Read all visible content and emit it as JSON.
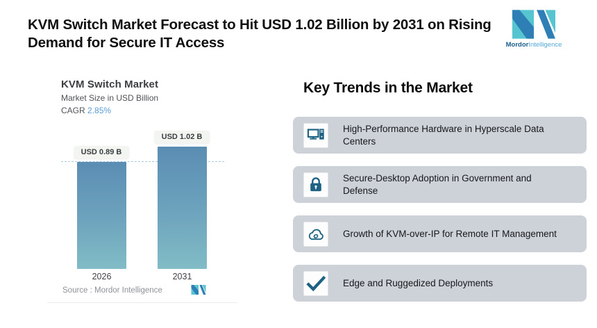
{
  "header": {
    "title": "KVM Switch Market Forecast to Hit USD 1.02 Billion by 2031 on Rising\nDemand for Secure IT Access",
    "logo": {
      "icon": "mordor-logo-mark",
      "brand_bold": "Mordor",
      "brand_light": "Intelligence",
      "teal": "#56c5d0",
      "blue": "#2e7fb5"
    }
  },
  "chart_data": {
    "type": "bar",
    "title": "KVM Switch Market",
    "subtitle": "Market Size in USD Billion",
    "cagr_label": "CAGR",
    "cagr_value": "2.85%",
    "cagr_color": "#5b9bd5",
    "categories": [
      "2026",
      "2031"
    ],
    "values": [
      0.89,
      1.02
    ],
    "bar_labels": [
      "USD 0.89 B",
      "USD 1.02 B"
    ],
    "unit": "USD Billion",
    "reference_line_value": 0.89,
    "source": "Source :  Mordor Intelligence",
    "bar_gradient_top": "#5b8db3",
    "bar_gradient_bottom": "#82bcc6",
    "grid": false,
    "legend": false,
    "ylim": [
      0,
      1.1
    ]
  },
  "trends": {
    "heading": "Key Trends in the Market",
    "card_bg": "#cdd2d9",
    "icon_color": "#1d6283",
    "items": [
      {
        "icon": "desktop-computer-icon",
        "text": "High-Performance Hardware in Hyperscale Data\nCenters"
      },
      {
        "icon": "lock-icon",
        "text": "Secure-Desktop Adoption in Government and\nDefense"
      },
      {
        "icon": "cloud-sync-icon",
        "text": "Growth of KVM-over-IP for Remote IT Management"
      },
      {
        "icon": "check-icon",
        "text": "Edge and Ruggedized Deployments"
      }
    ]
  }
}
